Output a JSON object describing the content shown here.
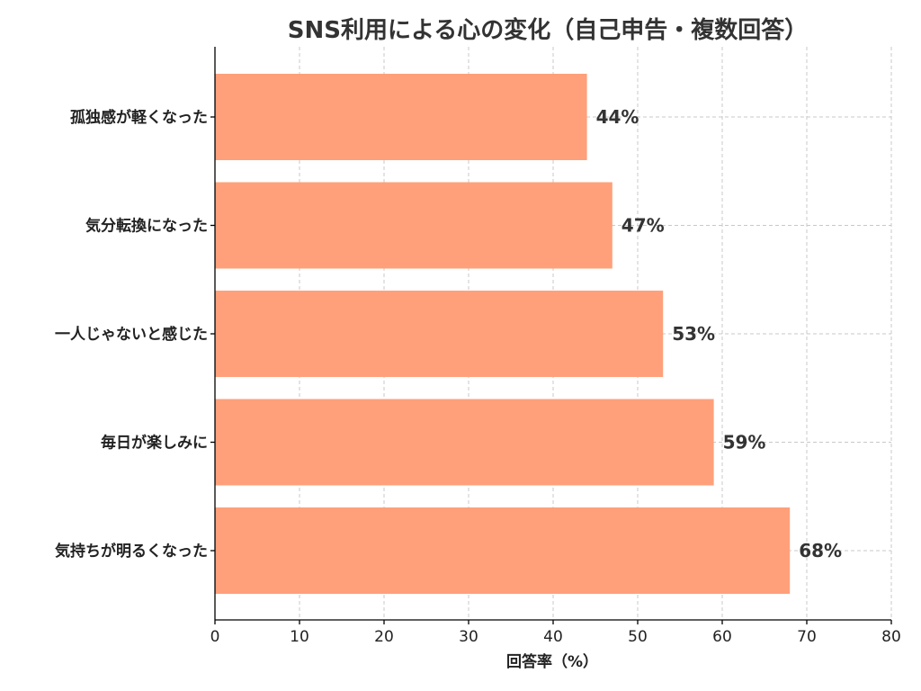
{
  "chart_data": {
    "type": "bar",
    "orientation": "horizontal",
    "title": "SNS利用による心の変化（自己申告・複数回答）",
    "xlabel": "回答率（%）",
    "ylabel": "",
    "categories": [
      "孤独感が軽くなった",
      "気分転換になった",
      "一人じゃないと感じた",
      "毎日が楽しみに",
      "気持ちが明るくなった"
    ],
    "values": [
      44,
      47,
      53,
      59,
      68
    ],
    "value_labels": [
      "44%",
      "47%",
      "53%",
      "59%",
      "68%"
    ],
    "xlim": [
      0,
      80
    ],
    "xticks": [
      0,
      10,
      20,
      30,
      40,
      50,
      60,
      70,
      80
    ],
    "xtick_labels": [
      "0",
      "10",
      "20",
      "30",
      "40",
      "50",
      "60",
      "70",
      "80"
    ],
    "grid": true,
    "bar_color": "#FFA07A"
  }
}
